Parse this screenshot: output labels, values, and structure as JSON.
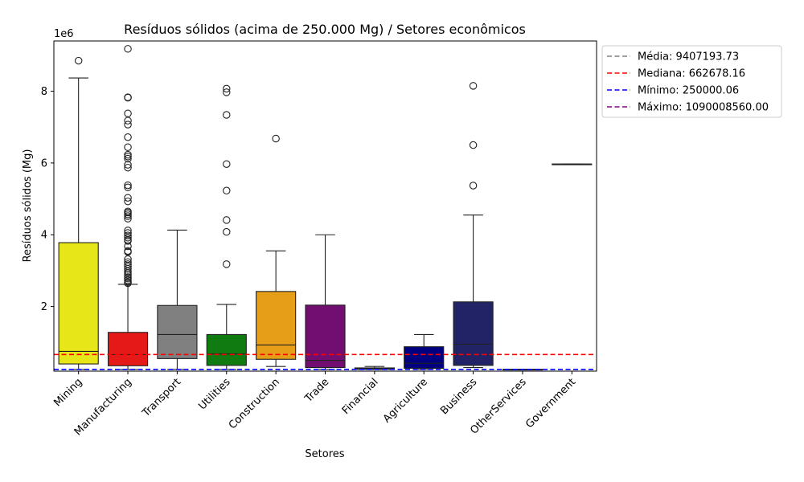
{
  "chart_data": {
    "type": "box",
    "title": "Resíduos sólidos (acima de 250.000 Mg) / Setores econômicos",
    "xlabel": "Setores",
    "ylabel": "Resíduos sólidos (Mg)",
    "y_offset_label": "1e6",
    "y_scale_factor": 1000000,
    "ylim": [
      0.2,
      9.4
    ],
    "yticks": [
      2,
      4,
      6,
      8
    ],
    "categories": [
      "Mining",
      "Manufacturing",
      "Transport",
      "Utilities",
      "Construction",
      "Trade",
      "Financial",
      "Agriculture",
      "Business",
      "OtherServices",
      "Government"
    ],
    "boxes": [
      {
        "category": "Mining",
        "color": "#e6e619",
        "whislo": 0.25,
        "q1": 0.4,
        "med": 0.75,
        "q3": 3.78,
        "whishi": 8.37,
        "fliers": [
          8.85
        ]
      },
      {
        "category": "Manufacturing",
        "color": "#e61919",
        "whislo": 0.25,
        "q1": 0.35,
        "med": 0.66,
        "q3": 1.28,
        "whishi": 2.62,
        "fliers": [
          9.18,
          7.82,
          7.83,
          7.38,
          7.18,
          7.07,
          6.72,
          6.44,
          6.23,
          6.18,
          6.12,
          5.95,
          5.87,
          5.38,
          5.32,
          5.03,
          4.93,
          4.65,
          4.62,
          4.57,
          4.52,
          4.45,
          4.12,
          4.05,
          3.98,
          3.92,
          3.86,
          3.83,
          3.68,
          3.55,
          3.52,
          3.32,
          3.24,
          3.18,
          3.12,
          3.05,
          2.98,
          2.93,
          2.88,
          2.82,
          2.78,
          2.73,
          2.68,
          2.65
        ]
      },
      {
        "category": "Transport",
        "color": "#808080",
        "whislo": 0.25,
        "q1": 0.55,
        "med": 1.22,
        "q3": 2.03,
        "whishi": 4.13,
        "fliers": []
      },
      {
        "category": "Utilities",
        "color": "#107b10",
        "whislo": 0.25,
        "q1": 0.36,
        "med": 0.68,
        "q3": 1.22,
        "whishi": 2.06,
        "fliers": [
          8.07,
          7.97,
          7.34,
          5.97,
          5.23,
          4.41,
          4.08,
          3.18
        ]
      },
      {
        "category": "Construction",
        "color": "#e69e19",
        "whislo": 0.33,
        "q1": 0.53,
        "med": 0.93,
        "q3": 2.42,
        "whishi": 3.55,
        "fliers": [
          6.68
        ]
      },
      {
        "category": "Trade",
        "color": "#720e72",
        "whislo": 0.25,
        "q1": 0.3,
        "med": 0.5,
        "q3": 2.04,
        "whishi": 4.0,
        "fliers": []
      },
      {
        "category": "Financial",
        "color": "#18187b",
        "whislo": 0.25,
        "q1": 0.25,
        "med": 0.27,
        "q3": 0.29,
        "whishi": 0.33,
        "fliers": []
      },
      {
        "category": "Agriculture",
        "color": "#000080",
        "whislo": 0.25,
        "q1": 0.28,
        "med": 0.42,
        "q3": 0.88,
        "whishi": 1.22,
        "fliers": []
      },
      {
        "category": "Business",
        "color": "#222266",
        "whislo": 0.3,
        "q1": 0.36,
        "med": 0.95,
        "q3": 2.13,
        "whishi": 4.55,
        "fliers": [
          8.15,
          6.5,
          5.37
        ]
      },
      {
        "category": "OtherServices",
        "color": "#222266",
        "whislo": 0.25,
        "q1": 0.25,
        "med": 0.25,
        "q3": 0.25,
        "whishi": 0.25,
        "fliers": []
      },
      {
        "category": "Government",
        "color": "#222266",
        "whislo": 5.97,
        "q1": 5.97,
        "med": 5.97,
        "q3": 5.97,
        "whishi": 5.97,
        "fliers": []
      }
    ],
    "reference_lines": [
      {
        "label": "Média: 9407193.73",
        "value": 9407193.73,
        "color": "#808080",
        "style": "dashed"
      },
      {
        "label": "Mediana: 662678.16",
        "value": 662678.16,
        "color": "#ff0000",
        "style": "dashed"
      },
      {
        "label": "Mínimo: 250000.06",
        "value": 250000.06,
        "color": "#0000ff",
        "style": "dashed"
      },
      {
        "label": "Máximo: 1090008560.00",
        "value": 1090008560.0,
        "color": "#800080",
        "style": "dashed"
      }
    ],
    "legend_position": "outside-top-right",
    "grid": false
  }
}
